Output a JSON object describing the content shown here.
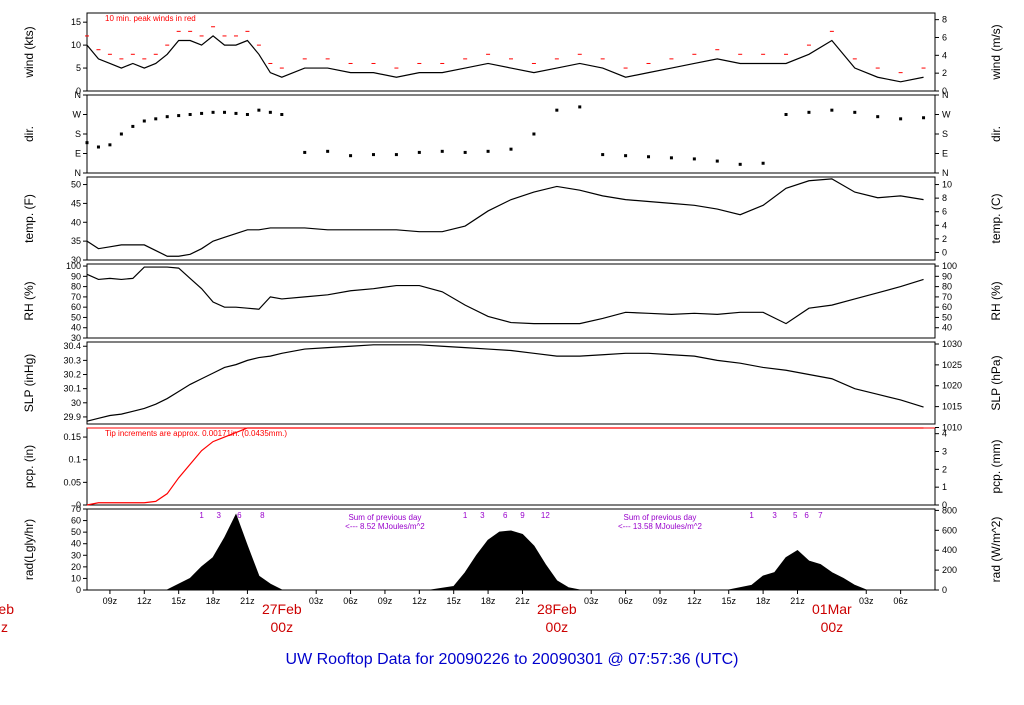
{
  "title": "UW Rooftop Data for 20090226  to  20090301 @ 07:57:36  (UTC)",
  "colors": {
    "line": "#000000",
    "peak": "#ff0000",
    "precip": "#ff0000",
    "date": "#cc0000",
    "title": "#0000cc",
    "annot": "#9900cc"
  },
  "time_axis": {
    "tick_labels": [
      "09z",
      "12z",
      "15z",
      "18z",
      "21z",
      "03z",
      "06z",
      "09z",
      "12z",
      "15z",
      "18z",
      "21z",
      "03z",
      "06z",
      "09z",
      "12z",
      "15z",
      "18z",
      "21z",
      "03z",
      "06z"
    ],
    "tick_hours": [
      9,
      12,
      15,
      18,
      21,
      27,
      30,
      33,
      36,
      39,
      42,
      45,
      51,
      54,
      57,
      60,
      63,
      66,
      69,
      75,
      78
    ],
    "day_labels": [
      {
        "date": "27Feb",
        "time": "00z",
        "hour": 24
      },
      {
        "date": "28Feb",
        "time": "00z",
        "hour": 48
      },
      {
        "date": "01Mar",
        "time": "00z",
        "hour": 72
      }
    ],
    "cut_label": {
      "date": "eb",
      "time": "z"
    }
  },
  "chart_data": [
    {
      "name": "wind",
      "type": "line",
      "ylabel_left": "wind (kts)",
      "ylabel_right": "wind (m/s)",
      "left_ticks": [
        0,
        5,
        10,
        15
      ],
      "right_ticks": [
        0,
        2,
        4,
        6,
        8
      ],
      "ylim": [
        0,
        17
      ],
      "annotation": "10 min. peak winds in red",
      "x_hours": [
        7,
        8,
        9,
        10,
        11,
        12,
        13,
        14,
        15,
        16,
        17,
        18,
        19,
        20,
        21,
        22,
        23,
        24,
        26,
        28,
        30,
        32,
        34,
        36,
        38,
        40,
        42,
        44,
        46,
        48,
        50,
        52,
        54,
        56,
        58,
        60,
        62,
        64,
        66,
        68,
        70,
        72,
        74,
        76,
        78,
        80
      ],
      "values": [
        10,
        7,
        6,
        5,
        6,
        5,
        6,
        8,
        11,
        11,
        10,
        12,
        10,
        10,
        11,
        8,
        4,
        3,
        5,
        5,
        4,
        4,
        3,
        4,
        4,
        5,
        6,
        5,
        4,
        5,
        6,
        5,
        3,
        4,
        5,
        6,
        7,
        6,
        6,
        6,
        8,
        11,
        5,
        3,
        2,
        3
      ]
    },
    {
      "name": "dir",
      "type": "scatter",
      "ylabel_left": "dir.",
      "ylabel_right": "dir.",
      "left_ticks": [
        "N",
        "E",
        "S",
        "W",
        "N"
      ],
      "right_ticks": [
        "N",
        "E",
        "S",
        "W",
        "N"
      ],
      "ylim": [
        0,
        360
      ],
      "x_hours": [
        7,
        8,
        9,
        10,
        11,
        12,
        13,
        14,
        15,
        16,
        17,
        18,
        19,
        20,
        21,
        22,
        23,
        24,
        26,
        28,
        30,
        32,
        34,
        36,
        38,
        40,
        42,
        44,
        46,
        48,
        50,
        52,
        54,
        56,
        58,
        60,
        62,
        64,
        66,
        68,
        70,
        72,
        74,
        76,
        78,
        80
      ],
      "values": [
        140,
        120,
        130,
        180,
        215,
        240,
        250,
        260,
        265,
        270,
        275,
        280,
        280,
        275,
        270,
        290,
        280,
        270,
        95,
        100,
        80,
        85,
        85,
        95,
        100,
        95,
        100,
        110,
        180,
        290,
        305,
        85,
        80,
        75,
        70,
        65,
        55,
        40,
        45,
        270,
        280,
        290,
        280,
        260,
        250,
        255
      ]
    },
    {
      "name": "temp",
      "type": "line",
      "ylabel_left": "temp. (F)",
      "ylabel_right": "temp. (C)",
      "left_ticks": [
        30,
        35,
        40,
        45,
        50
      ],
      "right_ticks": [
        0,
        2,
        4,
        6,
        8,
        10
      ],
      "ylim": [
        30,
        52
      ],
      "x_hours": [
        7,
        8,
        9,
        10,
        11,
        12,
        13,
        14,
        15,
        16,
        17,
        18,
        19,
        20,
        21,
        22,
        23,
        24,
        26,
        28,
        30,
        32,
        34,
        36,
        38,
        40,
        42,
        44,
        46,
        48,
        50,
        52,
        54,
        56,
        58,
        60,
        62,
        64,
        66,
        68,
        70,
        72,
        74,
        76,
        78,
        80
      ],
      "values": [
        35,
        33,
        33.5,
        34,
        34,
        34,
        32.5,
        31,
        31,
        31.5,
        33,
        35,
        36,
        37,
        38,
        38,
        38.5,
        38.5,
        38.5,
        38,
        38,
        38,
        38,
        37.5,
        37.5,
        39,
        43,
        46,
        48,
        49.5,
        48.5,
        47,
        46,
        45.5,
        45,
        44.5,
        43.5,
        42,
        44.5,
        49,
        51,
        51.5,
        48,
        46.5,
        47,
        46
      ]
    },
    {
      "name": "rh",
      "type": "line",
      "ylabel_left": "RH (%)",
      "ylabel_right": "RH (%)",
      "left_ticks": [
        30,
        40,
        50,
        60,
        70,
        80,
        90,
        100
      ],
      "right_ticks": [
        40,
        50,
        60,
        70,
        80,
        90,
        100
      ],
      "ylim": [
        30,
        102
      ],
      "x_hours": [
        7,
        8,
        9,
        10,
        11,
        12,
        13,
        14,
        15,
        16,
        17,
        18,
        19,
        20,
        21,
        22,
        23,
        24,
        26,
        28,
        30,
        32,
        34,
        36,
        38,
        40,
        42,
        44,
        46,
        48,
        50,
        52,
        54,
        56,
        58,
        60,
        62,
        64,
        66,
        68,
        70,
        72,
        74,
        76,
        78,
        80
      ],
      "values": [
        92,
        87,
        88,
        87,
        88,
        99,
        99,
        99,
        98,
        88,
        78,
        65,
        60,
        60,
        59,
        58,
        70,
        68,
        70,
        72,
        76,
        78,
        81,
        81,
        75,
        62,
        51,
        45,
        44,
        44,
        44,
        49,
        55,
        54,
        53,
        54,
        53,
        55,
        55,
        44,
        59,
        62,
        68,
        74,
        80,
        87
      ]
    },
    {
      "name": "slp",
      "type": "line",
      "ylabel_left": "SLP (inHg)",
      "ylabel_right": "SLP (hPa)",
      "left_ticks": [
        29.9,
        30.0,
        30.1,
        30.2,
        30.3,
        30.4
      ],
      "right_ticks": [
        1010,
        1015,
        1020,
        1025,
        1030
      ],
      "ylim": [
        29.85,
        30.43
      ],
      "x_hours": [
        7,
        8,
        9,
        10,
        11,
        12,
        13,
        14,
        15,
        16,
        17,
        18,
        19,
        20,
        21,
        22,
        23,
        24,
        26,
        28,
        30,
        32,
        34,
        36,
        38,
        40,
        42,
        44,
        46,
        48,
        50,
        52,
        54,
        56,
        58,
        60,
        62,
        64,
        66,
        68,
        70,
        72,
        74,
        76,
        78,
        80
      ],
      "values": [
        29.87,
        29.89,
        29.91,
        29.92,
        29.94,
        29.96,
        29.99,
        30.03,
        30.08,
        30.13,
        30.17,
        30.21,
        30.25,
        30.27,
        30.3,
        30.32,
        30.33,
        30.35,
        30.38,
        30.39,
        30.4,
        30.41,
        30.41,
        30.41,
        30.4,
        30.39,
        30.38,
        30.37,
        30.35,
        30.33,
        30.33,
        30.34,
        30.35,
        30.35,
        30.34,
        30.33,
        30.3,
        30.28,
        30.25,
        30.23,
        30.2,
        30.17,
        30.1,
        30.06,
        30.02,
        29.97
      ]
    },
    {
      "name": "precip",
      "type": "line",
      "ylabel_left": "pcp. (in)",
      "ylabel_right": "pcp. (mm)",
      "left_ticks": [
        0.0,
        0.05,
        0.1,
        0.15
      ],
      "right_ticks": [
        0,
        1,
        2,
        3,
        4
      ],
      "ylim": [
        0,
        0.17
      ],
      "annotation": "Tip increments are approx. 0.00171in. (0.0435mm.)",
      "x_hours": [
        7,
        8,
        9,
        10,
        11,
        12,
        13,
        14,
        15,
        16,
        17,
        18,
        19,
        20,
        21,
        80
      ],
      "values": [
        0,
        0.005,
        0.005,
        0.005,
        0.005,
        0.005,
        0.008,
        0.025,
        0.06,
        0.09,
        0.12,
        0.14,
        0.15,
        0.16,
        0.17,
        0.17
      ]
    },
    {
      "name": "radiation",
      "type": "area",
      "ylabel_left": "rad(Lgly/hr)",
      "ylabel_right": "rad (W/m^2)",
      "left_ticks": [
        0,
        10,
        20,
        30,
        40,
        50,
        60,
        70
      ],
      "right_ticks": [
        0,
        200,
        400,
        600,
        800
      ],
      "ylim": [
        0,
        70
      ],
      "x_hours": [
        7,
        14,
        15,
        16,
        17,
        18,
        19,
        20,
        21,
        22,
        23,
        24,
        37,
        39,
        40,
        41,
        42,
        43,
        44,
        45,
        46,
        47,
        48,
        49,
        50,
        51,
        63,
        65,
        66,
        67,
        68,
        69,
        70,
        71,
        72,
        73,
        74,
        75,
        80
      ],
      "values": [
        0,
        0,
        5,
        10,
        20,
        28,
        45,
        65,
        38,
        12,
        5,
        0,
        0,
        3,
        15,
        30,
        43,
        50,
        51,
        48,
        38,
        22,
        8,
        2,
        0,
        0,
        0,
        4,
        12,
        15,
        28,
        34,
        25,
        22,
        15,
        10,
        4,
        0,
        0
      ],
      "annotations": [
        {
          "text": "Sum of previous day",
          "text2": "<--- 8.52 MJoules/m^2",
          "hour": 33
        },
        {
          "text": "Sum of previous day",
          "text2": "<--- 13.58 MJoules/m^2",
          "hour": 57
        }
      ],
      "hour_markers": [
        {
          "labels": [
            "1",
            "3",
            "6",
            "8"
          ],
          "hours": [
            17,
            18.5,
            20.3,
            22.3
          ]
        },
        {
          "labels": [
            "1",
            "3",
            "6",
            "9",
            "12"
          ],
          "hours": [
            40,
            41.5,
            43.5,
            45,
            47
          ]
        },
        {
          "labels": [
            "1",
            "3",
            "5",
            "6",
            "7"
          ],
          "hours": [
            65,
            67,
            68.8,
            69.8,
            71
          ]
        }
      ]
    }
  ]
}
